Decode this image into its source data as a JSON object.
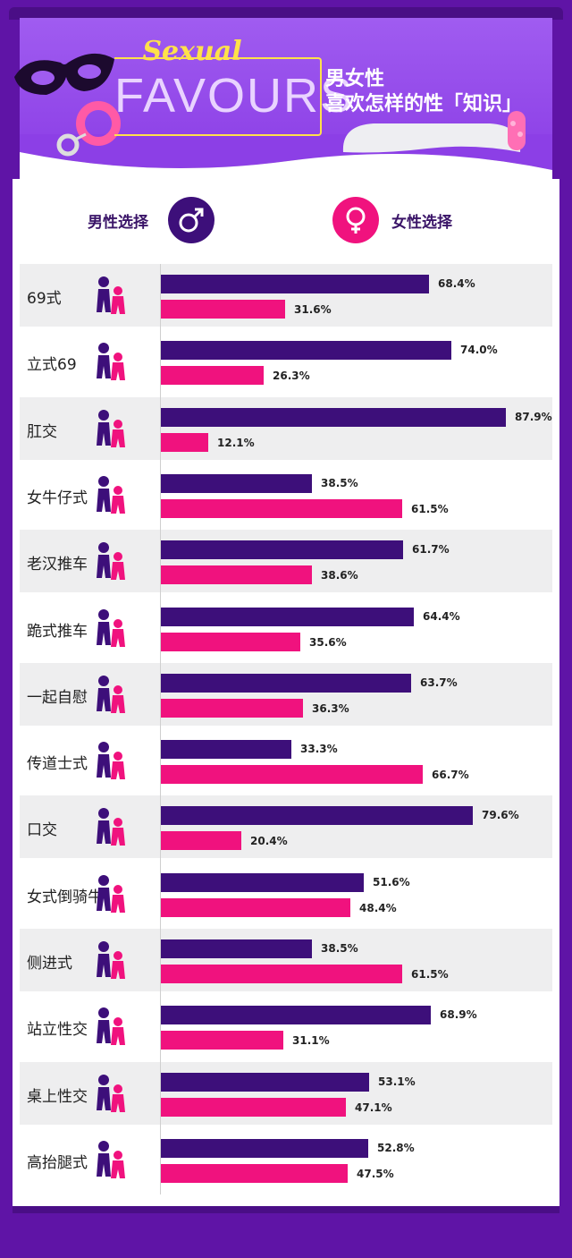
{
  "header": {
    "sexual": "Sexual",
    "favours": "FAVOURS",
    "title_line1": "男女性",
    "title_line2": "喜欢怎样的性「知识」"
  },
  "legend": {
    "male_label": "男性选择",
    "female_label": "女性选择",
    "male_icon": "male-symbol-icon",
    "female_icon": "female-symbol-icon"
  },
  "colors": {
    "male": "#3d0f7a",
    "female": "#f0127e",
    "background": "#5f14a6",
    "accent": "#ffe14a"
  },
  "chart_data": {
    "type": "bar",
    "orientation": "horizontal",
    "categories": [
      "69式",
      "立式69",
      "肛交",
      "女牛仔式",
      "老汉推车",
      "跪式推车",
      "一起自慰",
      "传道士式",
      "口交",
      "女式倒骑牛",
      "侧进式",
      "站立性交",
      "桌上性交",
      "高抬腿式"
    ],
    "series": [
      {
        "name": "男性选择",
        "values": [
          68.4,
          74.0,
          87.9,
          38.5,
          61.7,
          64.4,
          63.7,
          33.3,
          79.6,
          51.6,
          38.5,
          68.9,
          53.1,
          52.8
        ],
        "labels": [
          "68.4%",
          "74.0%",
          "87.9%",
          "38.5%",
          "61.7%",
          "64.4%",
          "63.7%",
          "33.3%",
          "79.6%",
          "51.6%",
          "38.5%",
          "68.9%",
          "53.1%",
          "52.8%"
        ]
      },
      {
        "name": "女性选择",
        "values": [
          31.6,
          26.3,
          12.1,
          61.5,
          38.6,
          35.6,
          36.3,
          66.7,
          20.4,
          48.4,
          61.5,
          31.1,
          47.1,
          47.5
        ],
        "labels": [
          "31.6%",
          "26.3%",
          "12.1%",
          "61.5%",
          "38.6%",
          "35.6%",
          "36.3%",
          "66.7%",
          "20.4%",
          "48.4%",
          "61.5%",
          "31.1%",
          "47.1%",
          "47.5%"
        ]
      }
    ],
    "xlim": [
      0,
      100
    ]
  }
}
